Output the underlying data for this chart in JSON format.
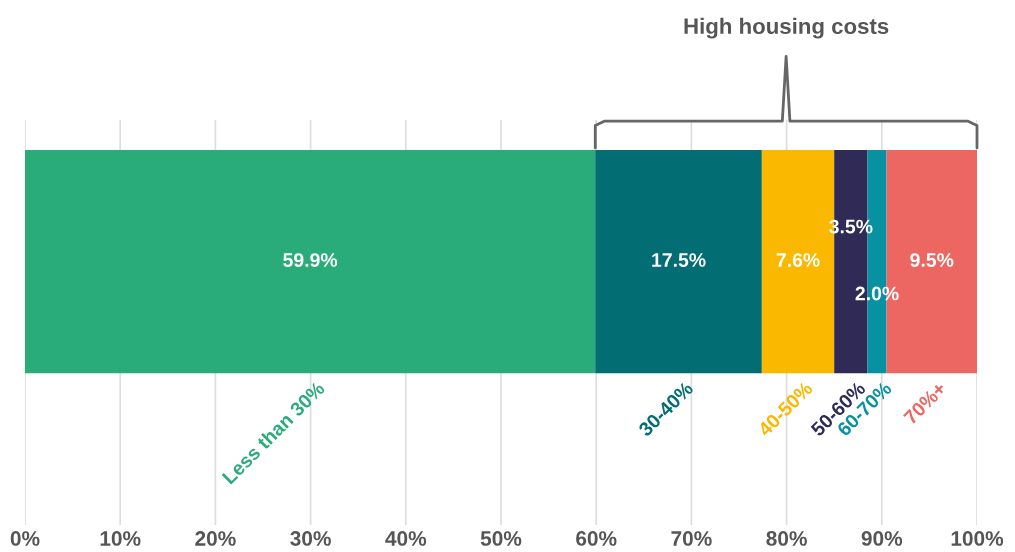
{
  "chart_data": {
    "type": "bar",
    "orientation": "horizontal",
    "stacked": true,
    "categories": [
      null
    ],
    "series": [
      {
        "name": "Less than 30%",
        "color": "#2aac7a",
        "values": [
          59.9
        ],
        "value_labels": [
          "59.9%"
        ]
      },
      {
        "name": "30-40%",
        "color": "#036d74",
        "values": [
          17.5
        ],
        "value_labels": [
          "17.5%"
        ]
      },
      {
        "name": "40-50%",
        "color": "#fbb800",
        "values": [
          7.6
        ],
        "value_labels": [
          "7.6%"
        ]
      },
      {
        "name": "50-60%",
        "color": "#2f2a56",
        "values": [
          3.5
        ],
        "value_labels": [
          "3.5%"
        ]
      },
      {
        "name": "60-70%",
        "color": "#0891a0",
        "values": [
          2.0
        ],
        "value_labels": [
          "2.0%"
        ]
      },
      {
        "name": "70%+",
        "color": "#ec6762",
        "values": [
          9.5
        ],
        "value_labels": [
          "9.5%"
        ]
      }
    ],
    "xlim": [
      0,
      100
    ],
    "xticks": [
      {
        "value": 0,
        "label": "0%"
      },
      {
        "value": 10,
        "label": "10%"
      },
      {
        "value": 20,
        "label": "20%"
      },
      {
        "value": 30,
        "label": "30%"
      },
      {
        "value": 40,
        "label": "40%"
      },
      {
        "value": 50,
        "label": "50%"
      },
      {
        "value": 60,
        "label": "60%"
      },
      {
        "value": 70,
        "label": "70%"
      },
      {
        "value": 80,
        "label": "80%"
      },
      {
        "value": 90,
        "label": "90%"
      },
      {
        "value": 100,
        "label": "100%"
      }
    ],
    "grid": "x",
    "annotations": [
      "High housing costs"
    ]
  }
}
